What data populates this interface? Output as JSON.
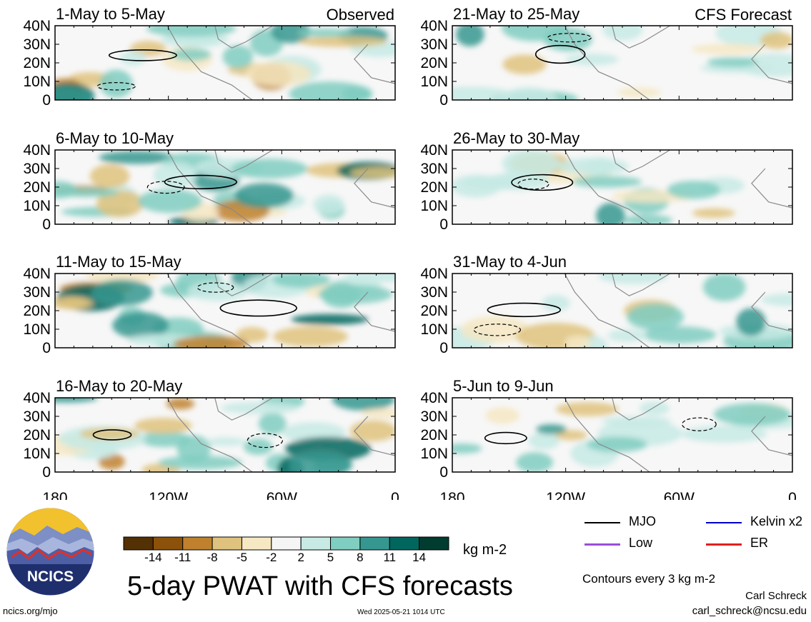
{
  "panels": [
    {
      "title": "1-May to 5-May",
      "tag": "Observed",
      "column": 0,
      "row": 0
    },
    {
      "title": "6-May to 10-May",
      "tag": "",
      "column": 0,
      "row": 1
    },
    {
      "title": "11-May to 15-May",
      "tag": "",
      "column": 0,
      "row": 2
    },
    {
      "title": "16-May to 20-May",
      "tag": "",
      "column": 0,
      "row": 3
    },
    {
      "title": "21-May to 25-May",
      "tag": "CFS Forecast",
      "column": 1,
      "row": 0
    },
    {
      "title": "26-May to 30-May",
      "tag": "",
      "column": 1,
      "row": 1
    },
    {
      "title": "31-May to 4-Jun",
      "tag": "",
      "column": 1,
      "row": 2
    },
    {
      "title": "5-Jun to 9-Jun",
      "tag": "",
      "column": 1,
      "row": 3
    }
  ],
  "lat_ticks": [
    "40N",
    "30N",
    "20N",
    "10N",
    "0"
  ],
  "lon_ticks": [
    "180",
    "120W",
    "60W",
    "0"
  ],
  "colorbar": {
    "labels": [
      "-14",
      "-11",
      "-8",
      "-5",
      "-2",
      "2",
      "5",
      "8",
      "11",
      "14"
    ],
    "colors": [
      "#543005",
      "#8c510a",
      "#bf812d",
      "#dfc27d",
      "#f6e8c3",
      "#f5f5f5",
      "#c7eae5",
      "#80cdc1",
      "#35978f",
      "#01665e",
      "#003c30"
    ],
    "units": "kg m-2"
  },
  "legend": [
    {
      "label": "MJO",
      "color": "#000000"
    },
    {
      "label": "Kelvin x2",
      "color": "#0000cc"
    },
    {
      "label": "Low",
      "color": "#9b4fd6"
    },
    {
      "label": "ER",
      "color": "#e02020"
    }
  ],
  "title": "5-day PWAT with CFS forecasts",
  "contour_note": "Contours every 3 kg m-2",
  "author": "Carl Schreck",
  "email": "carl_schreck@ncsu.edu",
  "site": "ncics.org/mjo",
  "timestamp": "Wed 2025-05-21 1014 UTC",
  "logo_text": "NCICS"
}
